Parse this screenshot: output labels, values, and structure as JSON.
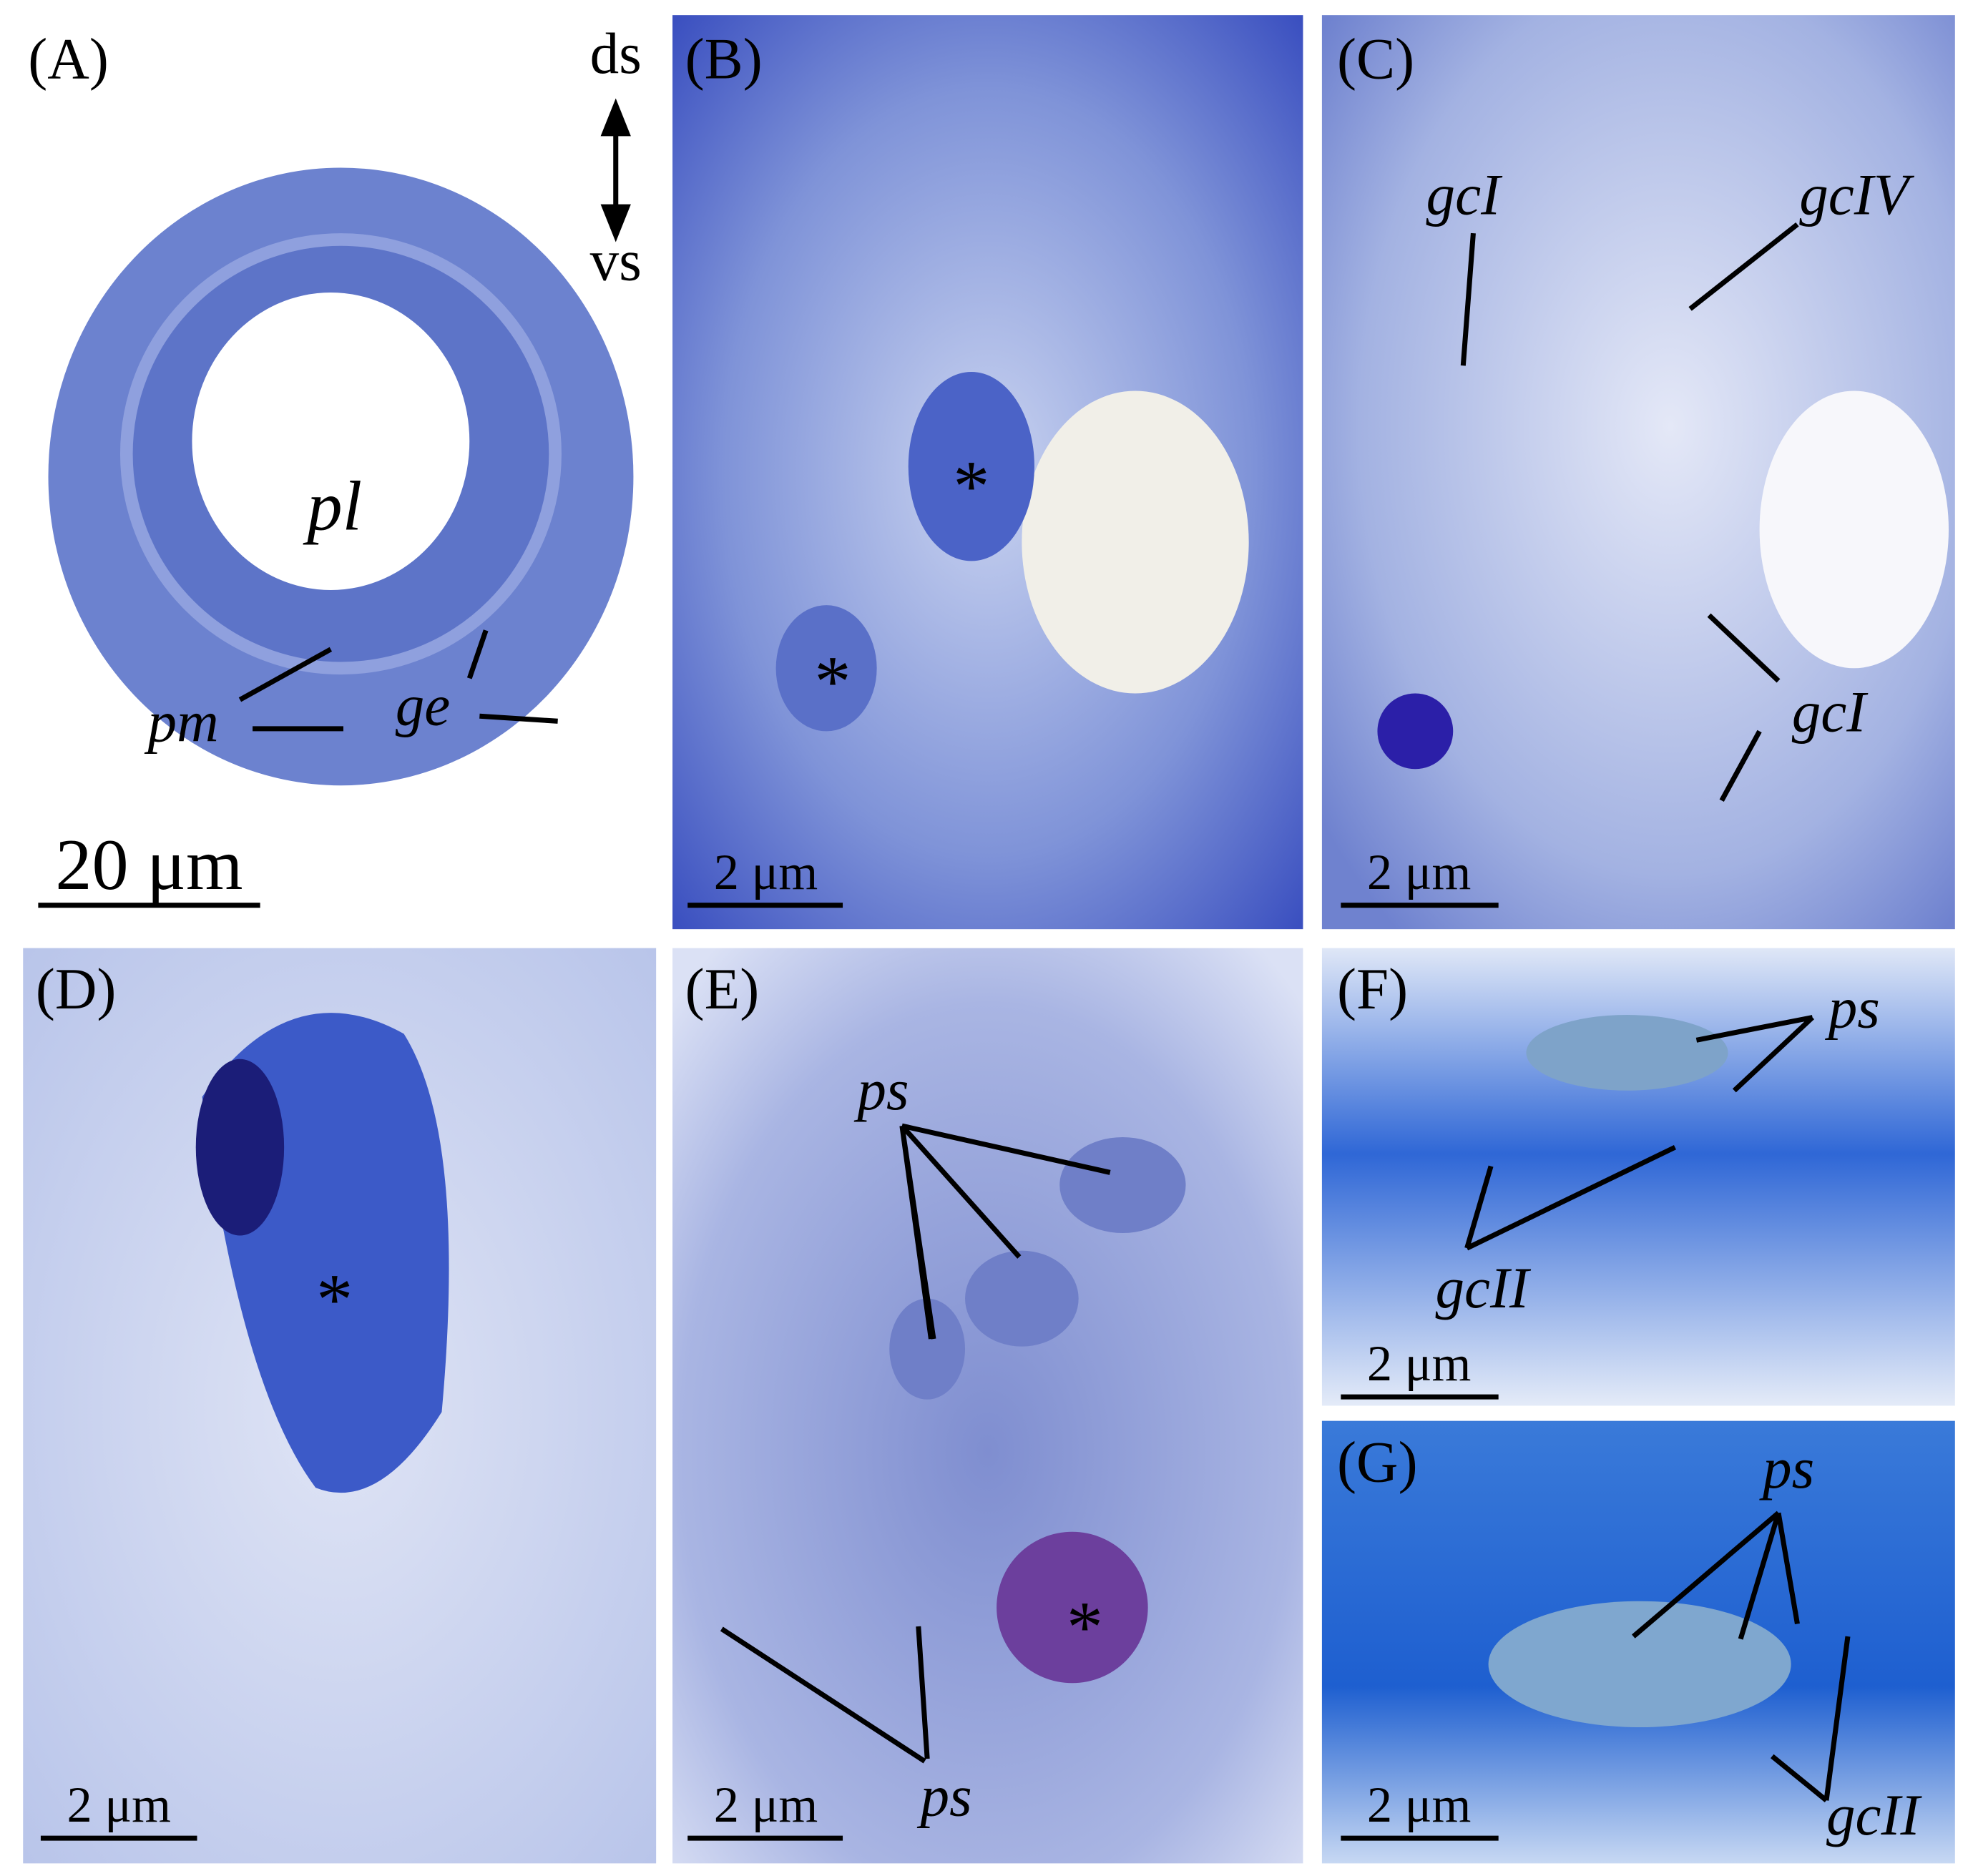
{
  "panels": [
    {
      "label": "(A)",
      "orientation": [
        "ds",
        "vs"
      ],
      "annotations": [
        "pl",
        "pm",
        "ge"
      ],
      "scale_bar": "20 μm"
    },
    {
      "label": "(B)",
      "annotations": [
        "*",
        "*"
      ],
      "scale_bar": "2 μm"
    },
    {
      "label": "(C)",
      "annotations": [
        "gcI",
        "gcIV",
        "gcI"
      ],
      "scale_bar": "2 μm"
    },
    {
      "label": "(D)",
      "annotations": [
        "*"
      ],
      "scale_bar": "2 μm"
    },
    {
      "label": "(E)",
      "annotations": [
        "ps",
        "ps",
        "*"
      ],
      "scale_bar": "2 μm"
    },
    {
      "label": "(F)",
      "annotations": [
        "ps",
        "gcII"
      ],
      "scale_bar": "2 μm"
    },
    {
      "label": "(G)",
      "annotations": [
        "ps",
        "gcII"
      ],
      "scale_bar": "2 μm"
    }
  ]
}
